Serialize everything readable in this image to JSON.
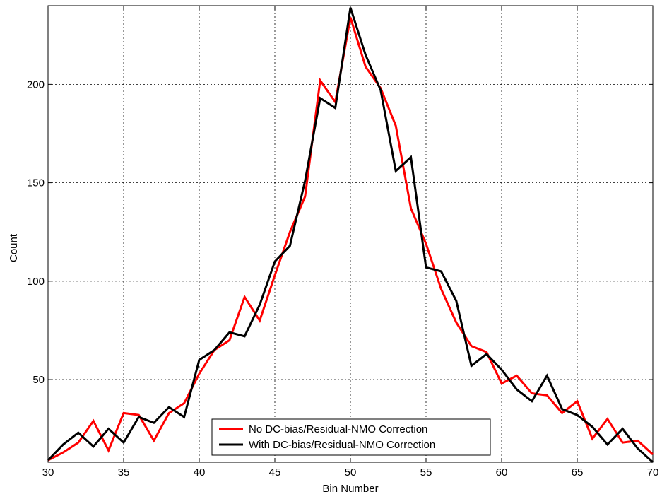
{
  "chart_data": {
    "type": "line",
    "title": "",
    "xlabel": "Bin Number",
    "ylabel": "Count",
    "xlim": [
      30,
      70
    ],
    "ylim": [
      8,
      240
    ],
    "xticks": [
      30,
      35,
      40,
      45,
      50,
      55,
      60,
      65,
      70
    ],
    "yticks": [
      50,
      100,
      150,
      200
    ],
    "grid": true,
    "legend_position": "bottom-center",
    "series": [
      {
        "name": "No DC-bias/Residual-NMO Correction",
        "color": "#ff0000",
        "x": [
          30,
          31,
          32,
          33,
          34,
          35,
          36,
          37,
          38,
          39,
          40,
          41,
          42,
          43,
          44,
          45,
          46,
          47,
          48,
          49,
          50,
          51,
          52,
          53,
          54,
          55,
          56,
          57,
          58,
          59,
          60,
          61,
          62,
          63,
          64,
          65,
          66,
          67,
          68,
          69,
          70
        ],
        "y": [
          9,
          13,
          18,
          29,
          14,
          33,
          32,
          19,
          33,
          38,
          53,
          65,
          70,
          92,
          80,
          103,
          125,
          143,
          202,
          191,
          234,
          209,
          198,
          179,
          137,
          119,
          96,
          79,
          67,
          64,
          48,
          52,
          43,
          42,
          33,
          39,
          20,
          30,
          18,
          19,
          12
        ]
      },
      {
        "name": "With DC-bias/Residual-NMO Correction",
        "color": "#000000",
        "x": [
          30,
          31,
          32,
          33,
          34,
          35,
          36,
          37,
          38,
          39,
          40,
          41,
          42,
          43,
          44,
          45,
          46,
          47,
          48,
          49,
          50,
          51,
          52,
          53,
          54,
          55,
          56,
          57,
          58,
          59,
          60,
          61,
          62,
          63,
          64,
          65,
          66,
          67,
          68,
          69,
          70
        ],
        "y": [
          9,
          17,
          23,
          16,
          25,
          18,
          31,
          28,
          36,
          31,
          60,
          65,
          74,
          72,
          88,
          110,
          118,
          151,
          193,
          188,
          239,
          215,
          197,
          156,
          163,
          107,
          105,
          90,
          57,
          63,
          55,
          45,
          39,
          52,
          35,
          32,
          26,
          17,
          25,
          15,
          8
        ]
      }
    ]
  }
}
